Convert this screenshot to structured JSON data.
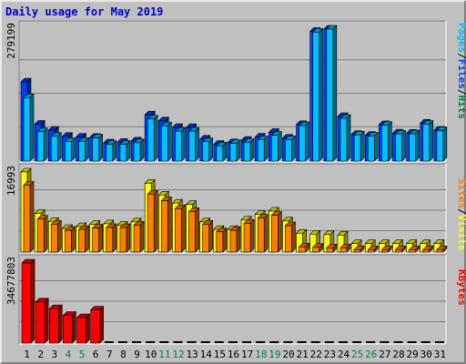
{
  "chart_data": {
    "type": "bar",
    "title": "Daily usage for May 2019",
    "categories": [
      "1",
      "2",
      "3",
      "4",
      "5",
      "6",
      "7",
      "8",
      "9",
      "10",
      "11",
      "12",
      "13",
      "14",
      "15",
      "16",
      "17",
      "18",
      "19",
      "20",
      "21",
      "22",
      "23",
      "24",
      "25",
      "26",
      "27",
      "28",
      "29",
      "30",
      "31"
    ],
    "weekend_categories": [
      "4",
      "5",
      "11",
      "12",
      "18",
      "19",
      "25",
      "26"
    ],
    "weekend_color": "#008040",
    "weekday_color": "#000000",
    "panels": [
      {
        "name": "pages-files-hits",
        "ymax_label": "279199",
        "ymax": 279199,
        "right_label": [
          {
            "text": "Pages",
            "color": "#00c0ff"
          },
          {
            "text": "/",
            "color": "#000000"
          },
          {
            "text": "Files",
            "color": "#0040ff"
          },
          {
            "text": "/",
            "color": "#000000"
          },
          {
            "text": "Hits",
            "color": "#008040"
          }
        ],
        "series": [
          {
            "name": "Hits",
            "color": "#008040",
            "values": [
              167500,
              78200,
              65400,
              52300,
              50800,
              50200,
              38300,
              39800,
              42500,
              97900,
              85200,
              71200,
              70800,
              46600,
              35600,
              38900,
              43900,
              50600,
              60700,
              48600,
              77500,
              274600,
              279199,
              94200,
              56500,
              54500,
              77200,
              59400,
              59000,
              80200,
              65300
            ]
          },
          {
            "name": "Files",
            "color": "#0040ff",
            "values": [
              167500,
              78200,
              65400,
              52300,
              50800,
              50200,
              38300,
              39800,
              42500,
              97900,
              85200,
              71200,
              70800,
              46600,
              35600,
              38900,
              43900,
              50600,
              60700,
              48600,
              77500,
              274600,
              279199,
              94200,
              56500,
              54500,
              77200,
              59400,
              59000,
              80200,
              65300
            ]
          },
          {
            "name": "Pages",
            "color": "#00c0ff",
            "values": [
              134200,
              62000,
              52400,
              41300,
              41400,
              49000,
              35400,
              35500,
              38800,
              89300,
              74600,
              63100,
              63400,
              41100,
              31900,
              37300,
              39700,
              45000,
              54700,
              45400,
              75000,
              272700,
              279199,
              90300,
              55300,
              52600,
              75600,
              57200,
              57600,
              78000,
              64200
            ]
          }
        ]
      },
      {
        "name": "visits-sites",
        "ymax_label": "16993",
        "ymax": 16993,
        "right_label": [
          {
            "text": "Sites",
            "color": "#ff8000"
          },
          {
            "text": "/",
            "color": "#000000"
          },
          {
            "text": "Visits",
            "color": "#ffff00"
          }
        ],
        "series": [
          {
            "name": "Visits",
            "color": "#ffff00",
            "values": [
              16993,
              8200,
              6500,
              5000,
              5400,
              5900,
              6000,
              5700,
              6400,
              14600,
              12100,
              10400,
              10100,
              6400,
              4800,
              4800,
              6800,
              8000,
              8700,
              6600,
              4000,
              3800,
              3700,
              3600,
              1800,
              1800,
              1800,
              1800,
              1800,
              1800,
              1800
            ]
          },
          {
            "name": "Sites",
            "color": "#ff8000",
            "values": [
              14200,
              7000,
              5900,
              4600,
              4800,
              5100,
              5200,
              5200,
              5700,
              12300,
              10900,
              9200,
              8600,
              5900,
              4300,
              4600,
              6100,
              7200,
              7800,
              5600,
              1100,
              1000,
              900,
              900,
              500,
              500,
              500,
              500,
              500,
              500,
              500
            ]
          }
        ]
      },
      {
        "name": "kbytes",
        "ymax_label": "34677803",
        "ymax": 34677803,
        "right_label": [
          {
            "text": "KBytes",
            "color": "#ff0000"
          }
        ],
        "series": [
          {
            "name": "KBytes",
            "color": "#ff0000",
            "values": [
              34677803,
              17800000,
              14900000,
              12000000,
              11000000,
              14300000,
              0,
              0,
              0,
              0,
              0,
              0,
              0,
              0,
              0,
              0,
              0,
              0,
              0,
              0,
              0,
              0,
              0,
              0,
              0,
              0,
              0,
              0,
              0,
              0,
              0
            ]
          }
        ]
      }
    ]
  }
}
